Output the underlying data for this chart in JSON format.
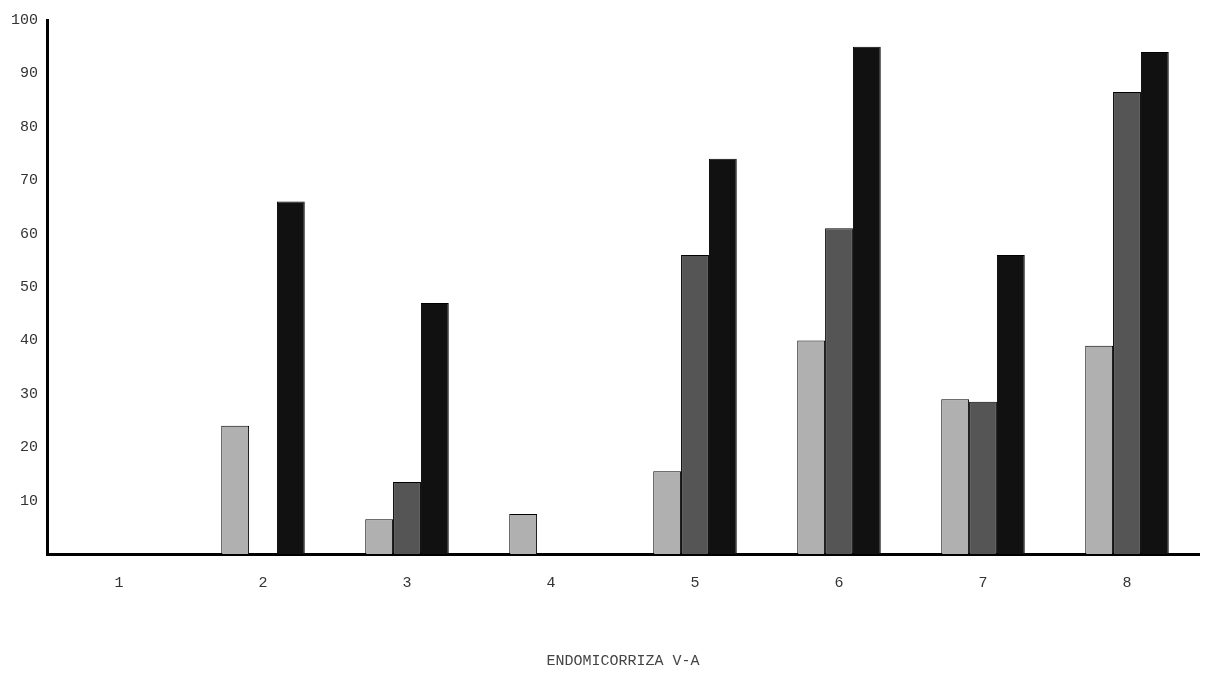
{
  "chart_data": {
    "type": "bar",
    "xlabel": "ENDOMICORRIZA V-A",
    "categories": [
      "1",
      "2",
      "3",
      "4",
      "5",
      "6",
      "7",
      "8"
    ],
    "series": [
      {
        "color": "#b0b0b0",
        "values": [
          0,
          24,
          6.5,
          7.5,
          15.5,
          40,
          29,
          39
        ]
      },
      {
        "color": "#555555",
        "values": [
          0,
          0,
          13.5,
          0,
          56,
          61,
          28.5,
          86.5
        ]
      },
      {
        "color": "#111111",
        "values": [
          0,
          66,
          47,
          0,
          74,
          95,
          56,
          94
        ]
      }
    ],
    "ylim": [
      0,
      100
    ],
    "yticks": [
      10,
      20,
      30,
      40,
      50,
      60,
      70,
      80,
      90,
      100
    ],
    "grid": false,
    "legend": false
  }
}
